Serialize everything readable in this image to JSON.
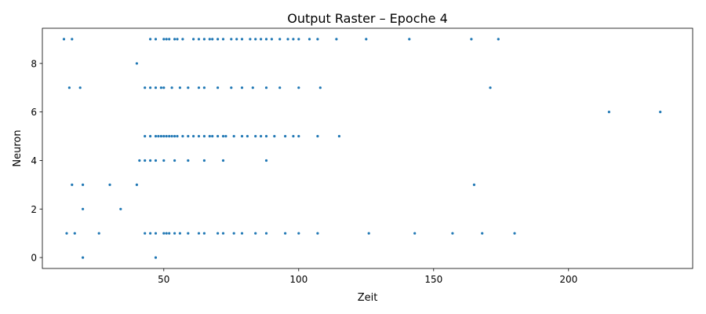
{
  "chart_data": {
    "type": "scatter",
    "title": "Output Raster – Epoche 4",
    "xlabel": "Zeit",
    "ylabel": "Neuron",
    "xlim": [
      5,
      246
    ],
    "ylim": [
      -0.45,
      9.45
    ],
    "xticks": [
      50,
      100,
      150,
      200
    ],
    "yticks": [
      0,
      2,
      4,
      6,
      8
    ],
    "grid": false,
    "marker_color": "#1f77b4",
    "spikes": [
      {
        "neuron": 0,
        "times": [
          20,
          47
        ]
      },
      {
        "neuron": 1,
        "times": [
          14,
          17,
          26,
          43,
          45,
          47,
          50,
          51,
          52,
          54,
          56,
          59,
          63,
          65,
          70,
          72,
          76,
          79,
          84,
          88,
          95,
          100,
          107,
          126,
          143,
          157,
          168,
          180
        ]
      },
      {
        "neuron": 2,
        "times": [
          20,
          34
        ]
      },
      {
        "neuron": 3,
        "times": [
          16,
          20,
          30,
          40,
          165
        ]
      },
      {
        "neuron": 4,
        "times": [
          41,
          43,
          45,
          47,
          50,
          54,
          59,
          65,
          72,
          88
        ]
      },
      {
        "neuron": 5,
        "times": [
          43,
          45,
          47,
          48,
          49,
          50,
          51,
          52,
          53,
          54,
          55,
          57,
          59,
          61,
          63,
          65,
          67,
          68,
          70,
          72,
          73,
          76,
          79,
          81,
          84,
          86,
          88,
          91,
          95,
          98,
          100,
          107,
          115
        ]
      },
      {
        "neuron": 6,
        "times": [
          215,
          234
        ]
      },
      {
        "neuron": 7,
        "times": [
          15,
          19,
          43,
          45,
          47,
          49,
          50,
          53,
          56,
          59,
          63,
          65,
          70,
          75,
          79,
          83,
          88,
          93,
          100,
          108,
          171
        ]
      },
      {
        "neuron": 8,
        "times": [
          40
        ]
      },
      {
        "neuron": 9,
        "times": [
          13,
          16,
          45,
          47,
          50,
          51,
          52,
          54,
          55,
          57,
          61,
          63,
          65,
          67,
          68,
          70,
          72,
          75,
          77,
          79,
          82,
          84,
          86,
          88,
          90,
          93,
          96,
          98,
          100,
          104,
          107,
          114,
          125,
          141,
          164,
          174
        ]
      }
    ]
  }
}
